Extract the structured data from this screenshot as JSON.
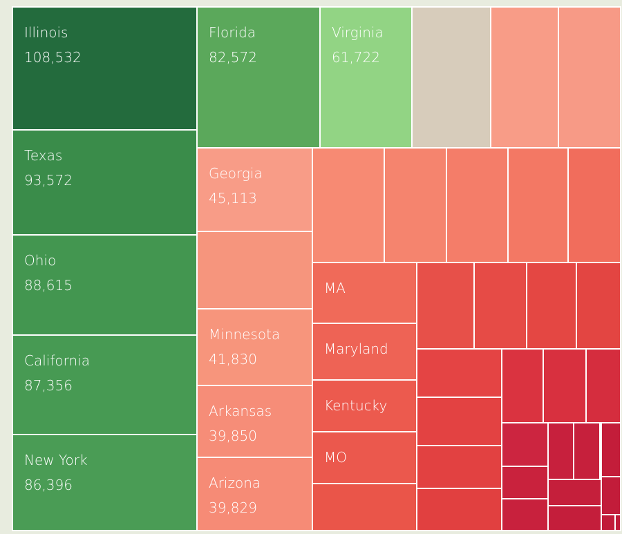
{
  "chart_data": {
    "type": "treemap",
    "categories": [
      "Illinois",
      "Texas",
      "Ohio",
      "California",
      "New York",
      "Florida",
      "Virginia",
      null,
      null,
      null,
      "Georgia",
      null,
      "Minnesota",
      "Arkansas",
      "Arizona",
      null,
      null,
      null,
      null,
      null,
      "MA",
      "Maryland",
      "Kentucky",
      "MO",
      null,
      null,
      null,
      null,
      null,
      null,
      null,
      null,
      null,
      null,
      null,
      null,
      null,
      null,
      null,
      null,
      null,
      null,
      null,
      null,
      null,
      null,
      null
    ],
    "values": [
      108532,
      93572,
      88615,
      87356,
      86396,
      82572,
      61722,
      53000,
      45600,
      41900,
      45113,
      42600,
      41830,
      39850,
      39829,
      39400,
      34100,
      33700,
      32900,
      28800,
      30300,
      28200,
      25800,
      25800,
      23400,
      23700,
      21700,
      20500,
      18200,
      19600,
      19600,
      17400,
      17100,
      14600,
      15100,
      12200,
      9600,
      7200,
      7000,
      6900,
      7100,
      6700,
      6300,
      5000,
      3500,
      1000,
      400
    ],
    "value_labels": [
      "108,532",
      "93,572",
      "88,615",
      "87,356",
      "86,396",
      "82,572",
      "61,722",
      null,
      null,
      null,
      "45,113",
      null,
      "41,830",
      "39,850",
      "39,829",
      null,
      null,
      null,
      null,
      null,
      null,
      null,
      null,
      null,
      null,
      null,
      null,
      null,
      null,
      null,
      null,
      null,
      null,
      null,
      null,
      null,
      null,
      null,
      null,
      null,
      null,
      null,
      null,
      null,
      null,
      null,
      null
    ],
    "colors": [
      "#236b3d",
      "#3a8c4a",
      "#439650",
      "#479a53",
      "#4a9c55",
      "#5ba85b",
      "#92d484",
      "#d7ccbb",
      "#f89c87",
      "#f79a86",
      "#f89c87",
      "#f6957d",
      "#f7957c",
      "#f68d78",
      "#f68b76",
      "#f78a73",
      "#f5846e",
      "#f47d69",
      "#f37864",
      "#f16d5c",
      "#f06a59",
      "#ee6355",
      "#ec5a4e",
      "#eb584d",
      "#ea5549",
      "#e75049",
      "#e64b46",
      "#e44743",
      "#e34542",
      "#e44444",
      "#e34242",
      "#e24141",
      "#e14040",
      "#da3340",
      "#d8303f",
      "#d52d3e",
      "#cc2540",
      "#c9223d",
      "#c8213d",
      "#c7203d",
      "#c6203c",
      "#c51f3b",
      "#c41e3b",
      "#c31d3a",
      "#c21c3a",
      "#c11b39",
      "#c01a39"
    ]
  }
}
